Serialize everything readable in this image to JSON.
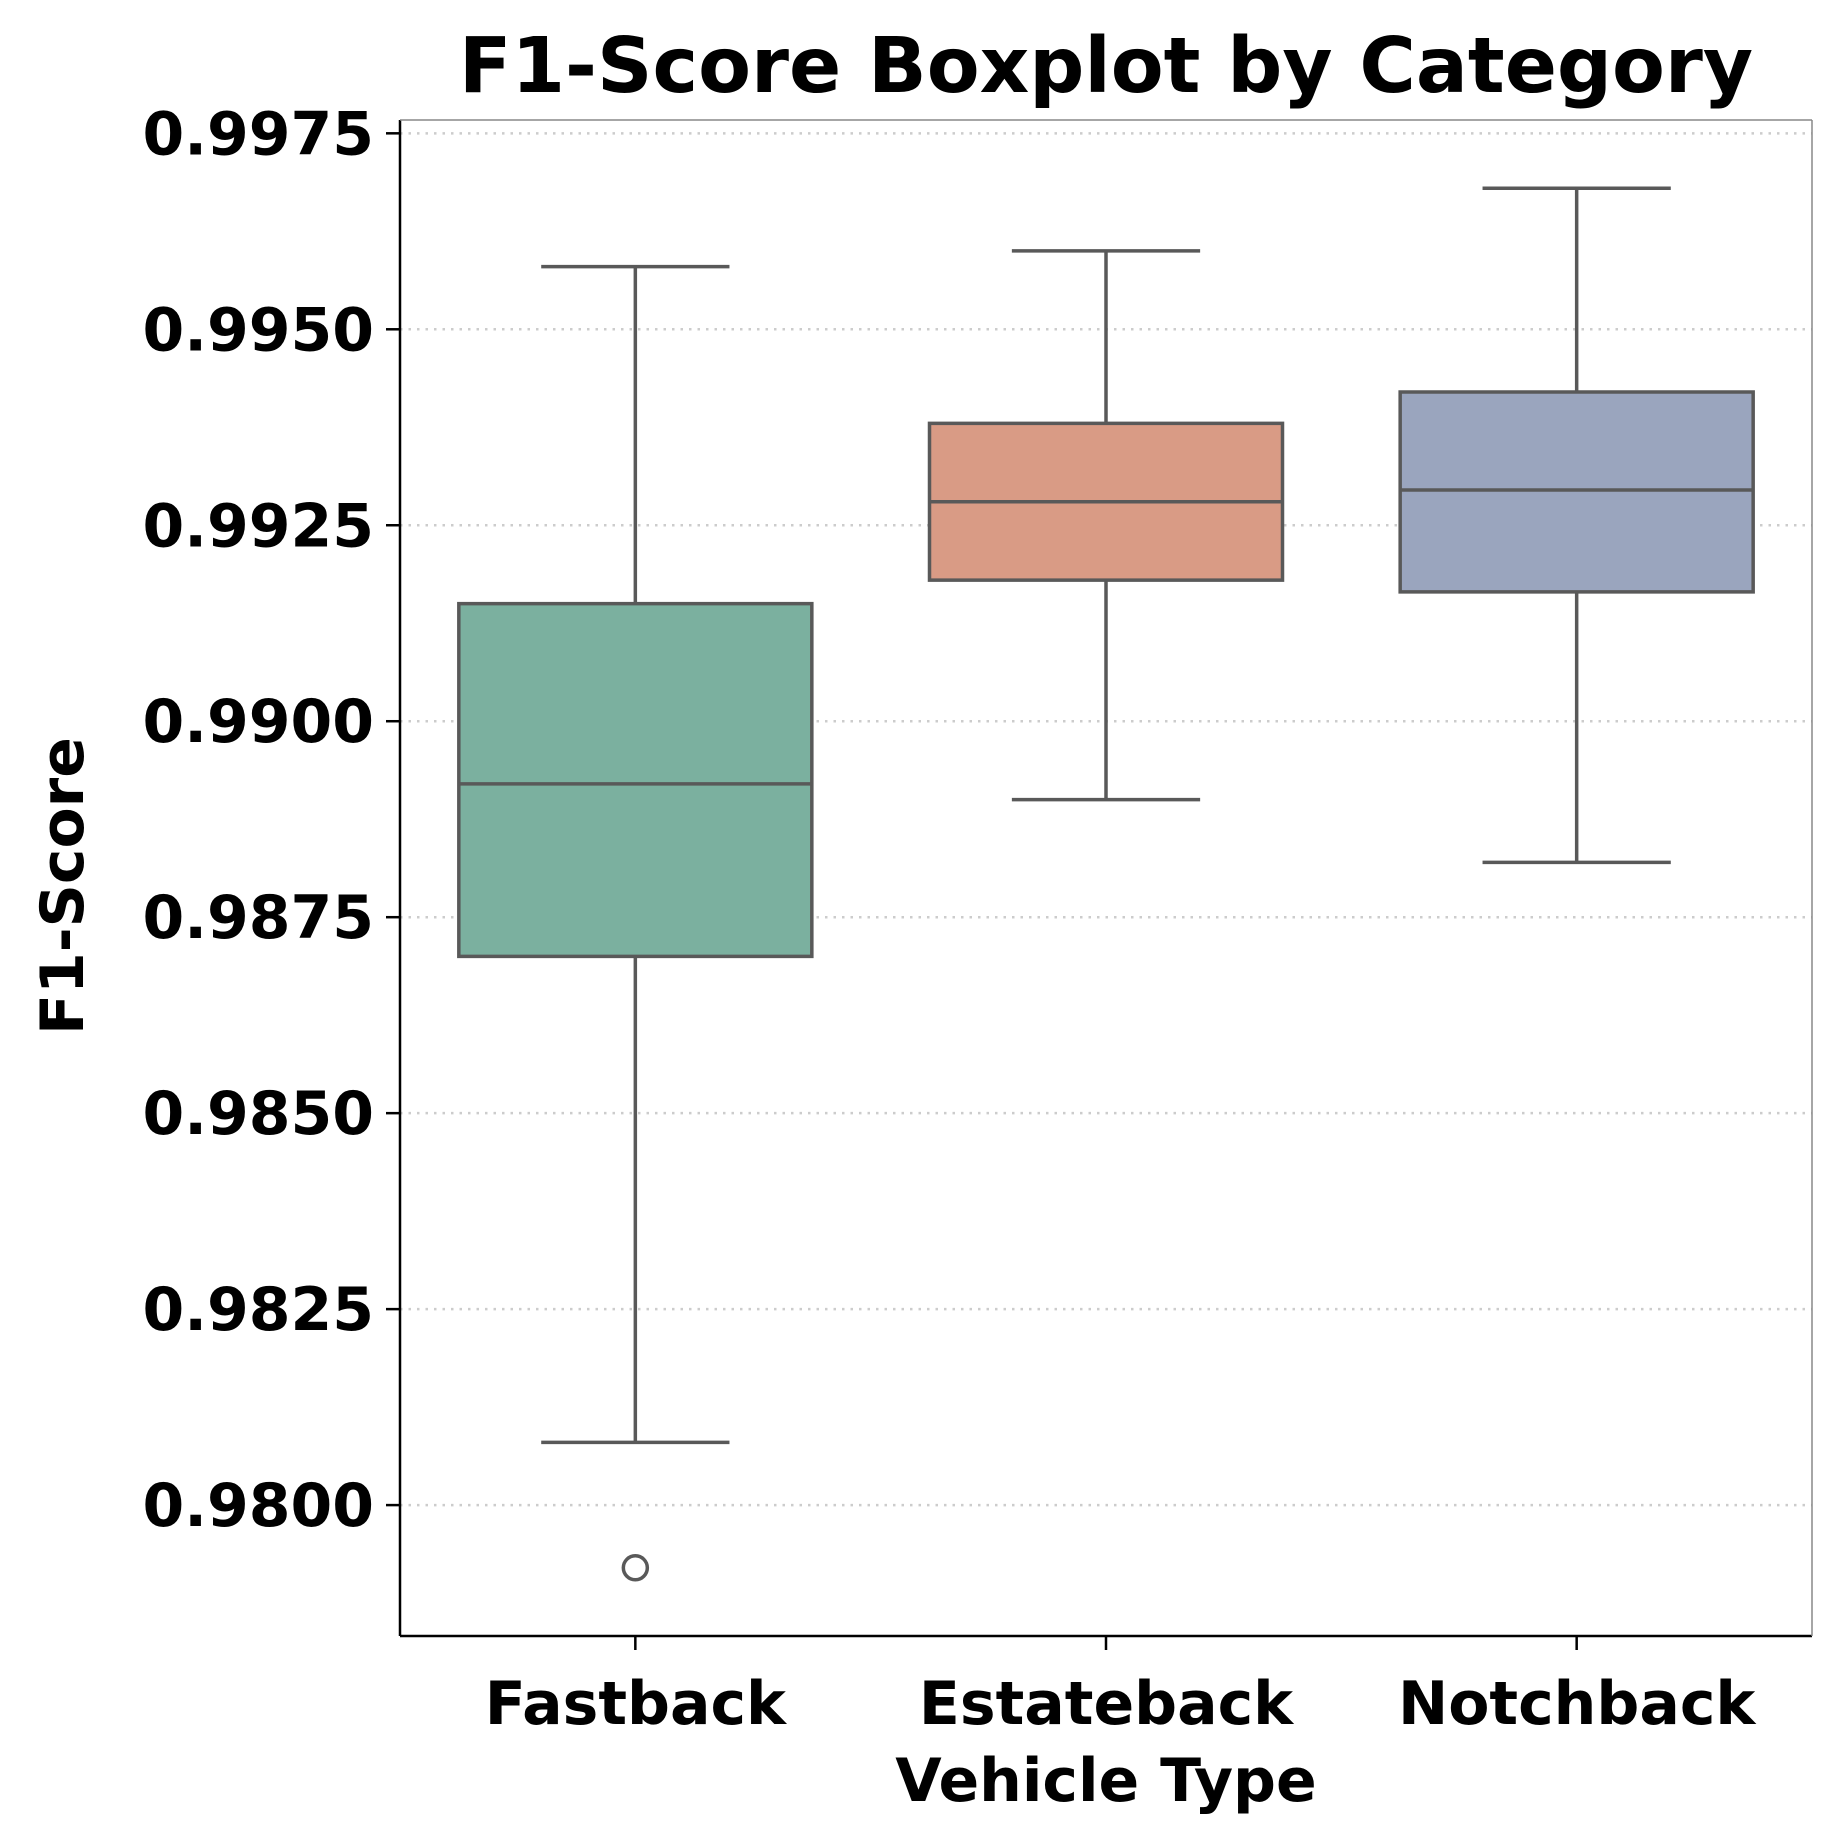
{
  "chart_data": {
    "type": "boxplot",
    "title": "F1-Score Boxplot by Category",
    "xlabel": "Vehicle Type",
    "ylabel": "F1-Score",
    "ylim": [
      0.97833,
      0.99767
    ],
    "yticks": [
      0.98,
      0.9825,
      0.985,
      0.9875,
      0.99,
      0.9925,
      0.995,
      0.9975
    ],
    "ytick_labels": [
      "0.9800",
      "0.9825",
      "0.9850",
      "0.9875",
      "0.9900",
      "0.9925",
      "0.9950",
      "0.9975"
    ],
    "grid": "horizontal dotted",
    "categories": [
      "Fastback",
      "Estateback",
      "Notchback"
    ],
    "boxes": [
      {
        "category": "Fastback",
        "whisker_low": 0.9808,
        "q1": 0.987,
        "median": 0.9892,
        "q3": 0.9915,
        "whisker_high": 0.9958,
        "outliers": [
          0.9792
        ],
        "color": "#7bb09f"
      },
      {
        "category": "Estateback",
        "whisker_low": 0.989,
        "q1": 0.9918,
        "median": 0.9928,
        "q3": 0.9938,
        "whisker_high": 0.996,
        "outliers": [],
        "color": "#d99b85"
      },
      {
        "category": "Notchback",
        "whisker_low": 0.9882,
        "q1": 0.99165,
        "median": 0.99295,
        "q3": 0.9942,
        "whisker_high": 0.9968,
        "outliers": [],
        "color": "#9aa5be"
      }
    ]
  }
}
